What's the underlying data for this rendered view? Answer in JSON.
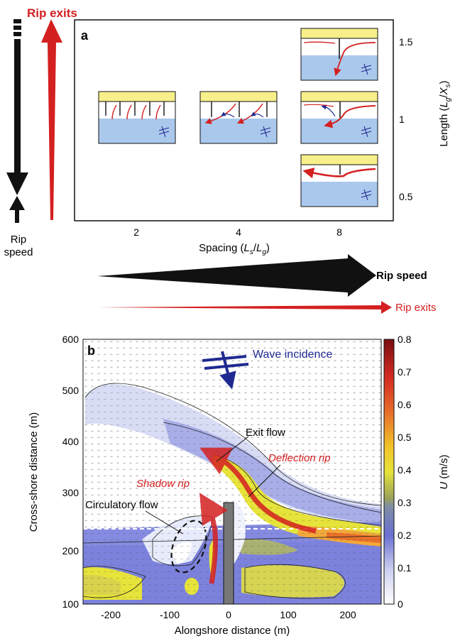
{
  "panel_a": {
    "label": "a",
    "left_arrows": {
      "red_label": "Rip exits",
      "black_label_line1": "Rip",
      "black_label_line2": "speed"
    },
    "x_axis": {
      "label_prefix": "Spacing (",
      "L": "L",
      "s_sub": "s",
      "slash": "/",
      "g_sub": "g",
      "label_suffix": ")",
      "ticks": [
        "2",
        "4",
        "8"
      ]
    },
    "y_axis": {
      "label_prefix": "Length (",
      "L": "L",
      "g_sub": "g",
      "slash": "/",
      "X": "X",
      "s_sub": "s",
      "label_suffix": ")",
      "ticks": [
        "1.5",
        "1",
        "0.5"
      ]
    },
    "bottom_arrows": {
      "black_label": "Rip speed",
      "red_label": "Rip exits"
    }
  },
  "panel_b": {
    "label": "b",
    "x_axis": {
      "label": "Alongshore distance (m)",
      "ticks": [
        "-200",
        "-100",
        "0",
        "100",
        "200"
      ]
    },
    "y_axis": {
      "label": "Cross-shore distance (m)",
      "ticks": [
        "100",
        "200",
        "300",
        "400",
        "500",
        "600"
      ]
    },
    "colorbar": {
      "label_var": "U",
      "label_unit": " (m/s)",
      "ticks": [
        "0",
        "0.1",
        "0.2",
        "0.3",
        "0.4",
        "0.5",
        "0.6",
        "0.7",
        "0.8"
      ]
    },
    "annotations": {
      "wave_incidence": "Wave incidence",
      "exit_flow": "Exit flow",
      "deflection_rip": "Deflection rip",
      "shadow_rip": "Shadow rip",
      "circulatory_flow": "Circulatory flow"
    }
  },
  "colors": {
    "red": "#d42020",
    "black": "#111111",
    "water": "#aac8ec",
    "beach": "#f7ef8a",
    "navy": "#1f2a90"
  }
}
